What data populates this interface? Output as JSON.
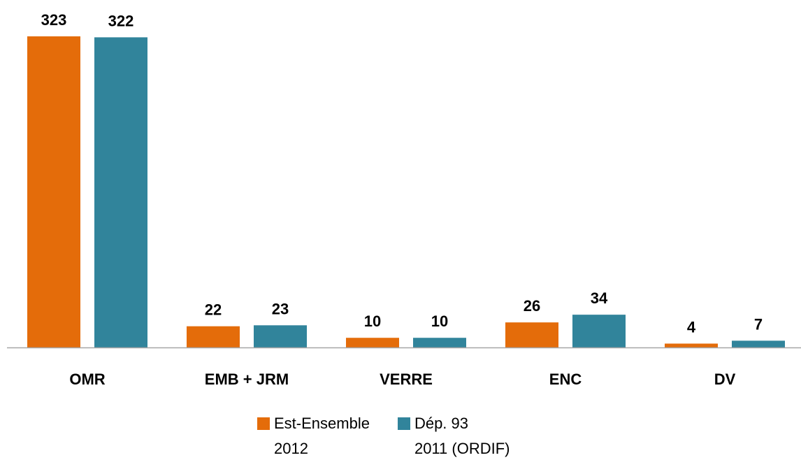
{
  "chart_data": {
    "type": "bar",
    "categories": [
      "OMR",
      "EMB + JRM",
      "VERRE",
      "ENC",
      "DV"
    ],
    "series": [
      {
        "name": "Est-Ensemble\n2012",
        "color": "#e46c0a",
        "values": [
          323,
          22,
          10,
          26,
          4
        ]
      },
      {
        "name": "Dép. 93\n2011 (ORDIF)",
        "color": "#31849b",
        "values": [
          322,
          23,
          10,
          34,
          7
        ]
      }
    ],
    "legend": "bottom"
  }
}
